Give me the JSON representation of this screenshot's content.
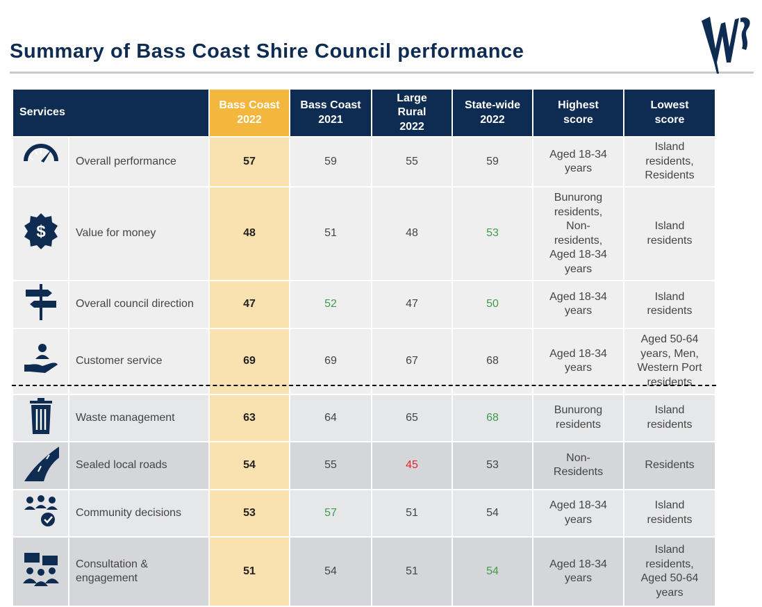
{
  "header": {
    "title": "Summary of Bass Coast Shire Council performance"
  },
  "table": {
    "columns": [
      [
        "Services"
      ],
      [
        "Bass Coast",
        "2022"
      ],
      [
        "Bass Coast",
        "2021"
      ],
      [
        "Large",
        "Rural",
        "2022"
      ],
      [
        "State-wide",
        "2022"
      ],
      [
        "Highest",
        "score"
      ],
      [
        "Lowest",
        "score"
      ]
    ],
    "rows": [
      {
        "service": [
          "Overall performance"
        ],
        "scores": [
          57,
          59,
          55,
          59
        ],
        "highest": [
          "Aged 18-34",
          "years"
        ],
        "lowest": [
          "Island",
          "residents,",
          "Residents"
        ]
      },
      {
        "service": [
          "Value for money"
        ],
        "scores": [
          48,
          51,
          48,
          {
            "value": 53,
            "color": "#3f9c4b"
          }
        ],
        "highest": [
          "Bunurong",
          "residents,",
          "Non-",
          "residents,",
          "Aged 18-34",
          "years"
        ],
        "lowest": [
          "Island",
          "residents"
        ]
      },
      {
        "service": [
          "Overall council direction"
        ],
        "scores": [
          47,
          {
            "value": 52,
            "color": "#3f9c4b"
          },
          47,
          {
            "value": 50,
            "color": "#3f9c4b"
          }
        ],
        "highest": [
          "Aged 18-34",
          "years"
        ],
        "lowest": [
          "Island",
          "residents"
        ]
      },
      {
        "service": [
          "Customer service"
        ],
        "scores": [
          69,
          69,
          67,
          68
        ],
        "highest": [
          "Aged 18-34",
          "years"
        ],
        "lowest": [
          "Aged 50-64",
          "years, Men,",
          "Western Port",
          "residents"
        ]
      },
      {
        "service": [
          "Waste management"
        ],
        "scores": [
          63,
          64,
          65,
          {
            "value": 68,
            "color": "#3f9c4b"
          }
        ],
        "highest": [
          "Bunurong",
          "residents"
        ],
        "lowest": [
          "Island",
          "residents"
        ]
      },
      {
        "service": [
          "Sealed local roads"
        ],
        "scores": [
          54,
          55,
          {
            "value": 45,
            "color": "#e3262b"
          },
          53
        ],
        "highest": [
          "Non-",
          "Residents"
        ],
        "lowest": [
          "Residents"
        ]
      },
      {
        "service": [
          "Community decisions"
        ],
        "scores": [
          53,
          {
            "value": 57,
            "color": "#3f9c4b"
          },
          51,
          54
        ],
        "highest": [
          "Aged 18-34",
          "years"
        ],
        "lowest": [
          "Island",
          "residents"
        ]
      },
      {
        "service": [
          "Consultation &",
          "engagement"
        ],
        "scores": [
          51,
          54,
          51,
          {
            "value": 54,
            "color": "#3f9c4b"
          }
        ],
        "highest": [
          "Aged 18-34",
          "years"
        ],
        "lowest": [
          "Island",
          "residents,",
          "Aged 50-64",
          "years"
        ]
      }
    ]
  }
}
